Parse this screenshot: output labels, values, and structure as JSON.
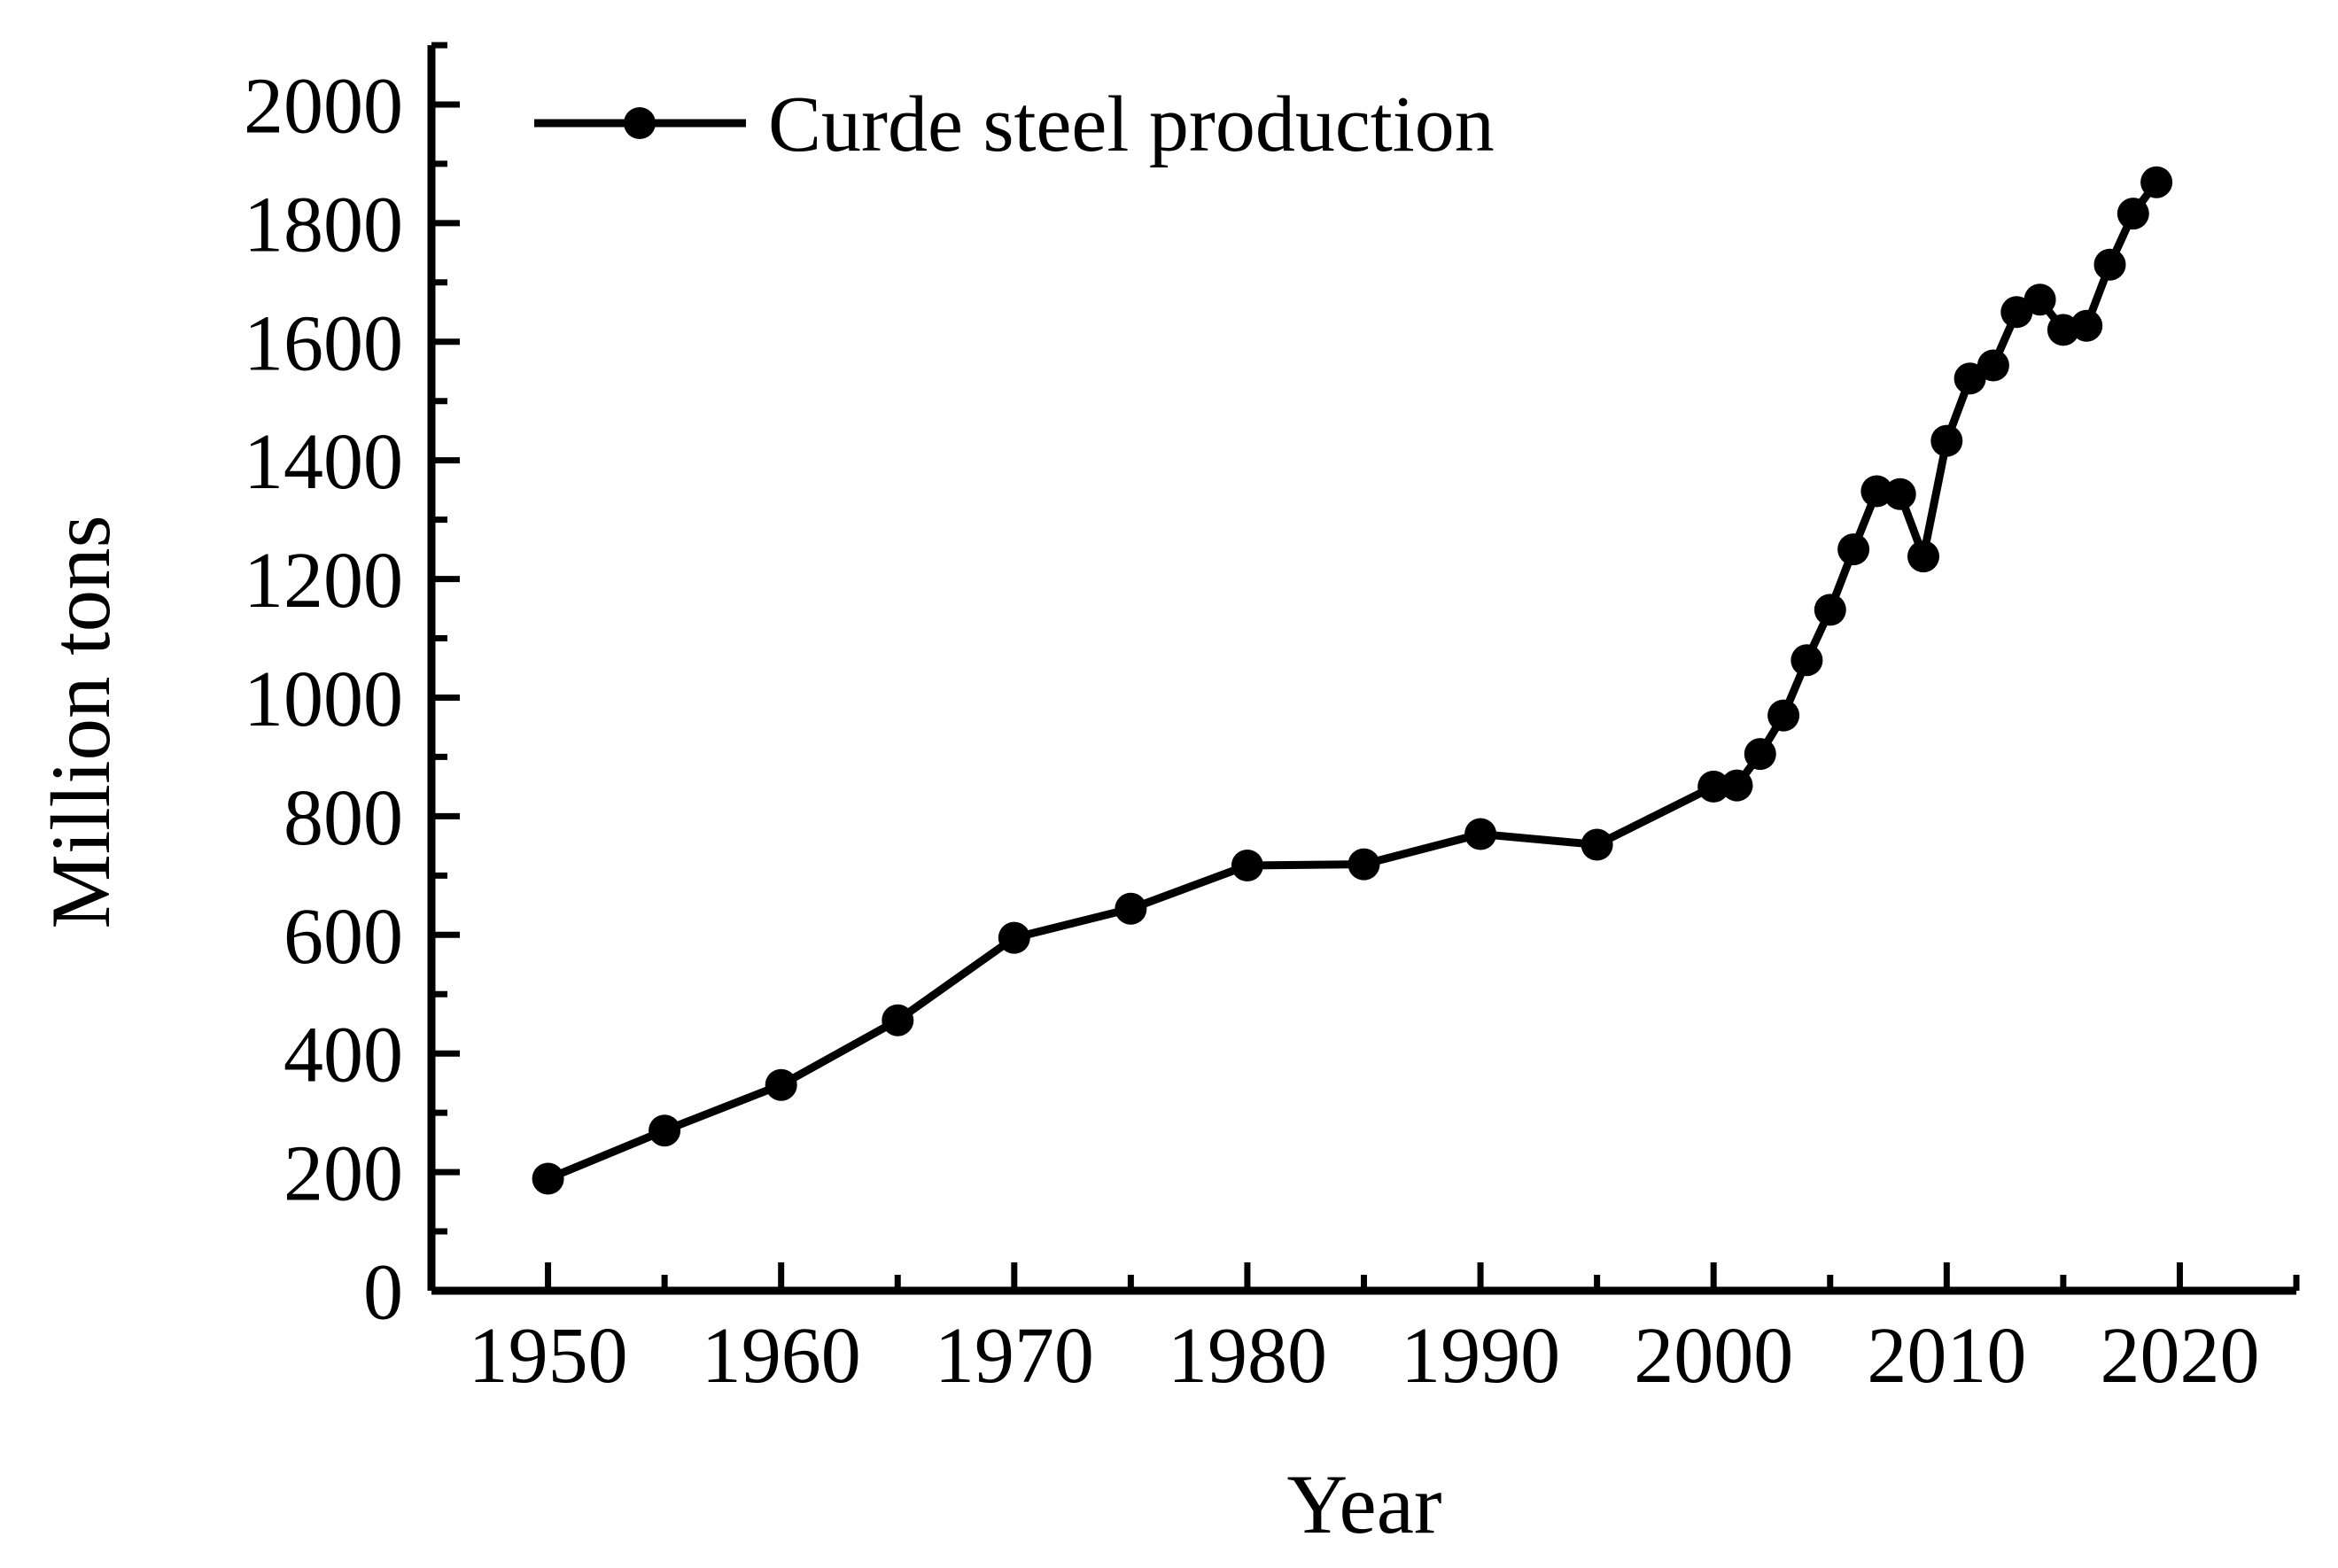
{
  "chart_data": {
    "type": "line",
    "title": "",
    "xlabel": "Year",
    "ylabel": "Million tons",
    "legend": [
      "Curde steel production"
    ],
    "legend_position": "top-left-inside",
    "grid": false,
    "line_color": "#000000",
    "marker_color": "#000000",
    "background_color": "#ffffff",
    "marker": "circle",
    "xlim": [
      1945,
      2025
    ],
    "ylim": [
      0,
      2100
    ],
    "x_major_ticks": [
      1950,
      1960,
      1970,
      1980,
      1990,
      2000,
      2010,
      2020
    ],
    "x_minor_step": 5,
    "y_major_ticks": [
      0,
      200,
      400,
      600,
      800,
      1000,
      1200,
      1400,
      1600,
      1800,
      2000
    ],
    "y_minor_step": 100,
    "series": [
      {
        "name": "Curde steel production",
        "x": [
          1950,
          1955,
          1960,
          1965,
          1970,
          1975,
          1980,
          1985,
          1990,
          1995,
          2000,
          2001,
          2002,
          2003,
          2004,
          2005,
          2006,
          2007,
          2008,
          2009,
          2010,
          2011,
          2012,
          2013,
          2014,
          2015,
          2016,
          2017,
          2018,
          2019
        ],
        "values": [
          189,
          270,
          347,
          456,
          595,
          644,
          717,
          719,
          770,
          752,
          850,
          852,
          905,
          970,
          1063,
          1148,
          1250,
          1348,
          1343,
          1238,
          1433,
          1538,
          1560,
          1650,
          1671,
          1620,
          1627,
          1730,
          1816,
          1869
        ]
      }
    ]
  }
}
